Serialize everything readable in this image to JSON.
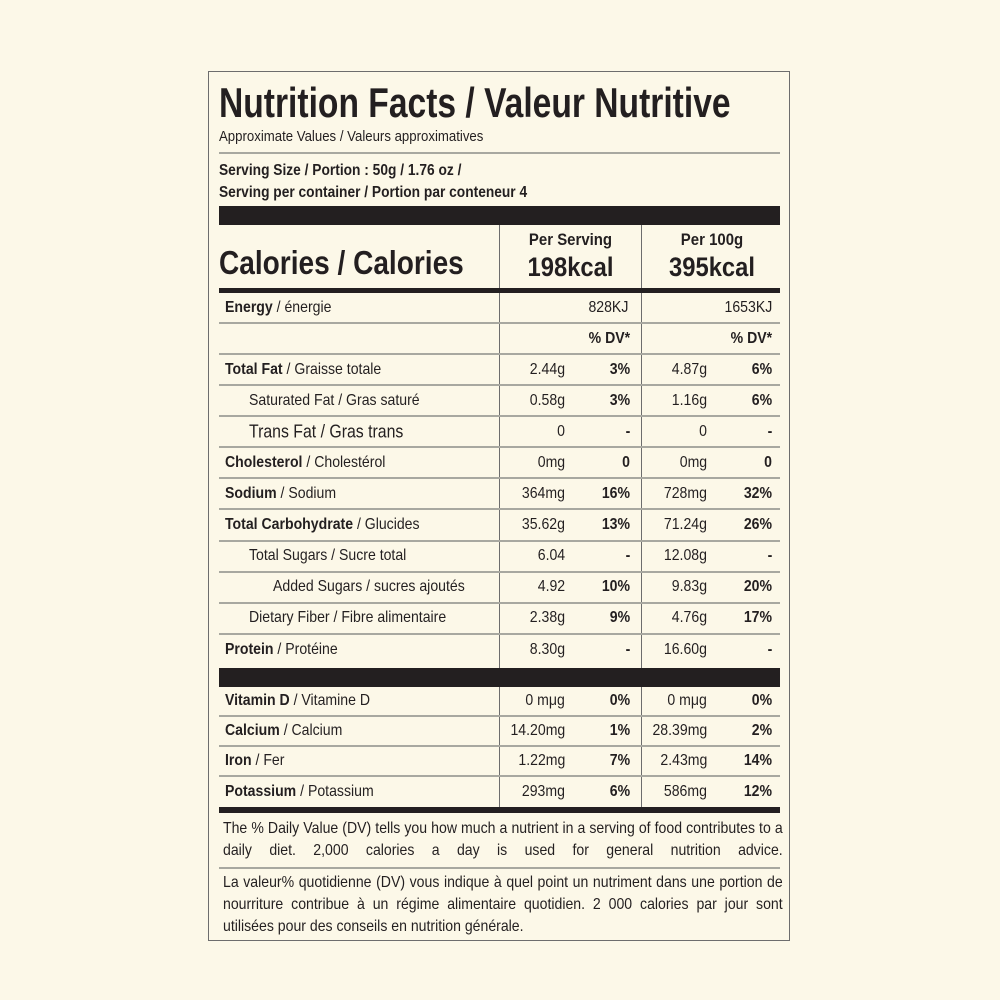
{
  "title": "Nutrition Facts / Valeur Nutritive",
  "approx": "Approximate Values / Valeurs approximatives",
  "serving_size": "Serving Size / Portion : 50g / 1.76 oz /",
  "servings_per_container": "Serving per container / Portion par conteneur  4",
  "calories_label": "Calories / Calories",
  "per_serving": {
    "label": "Per Serving",
    "kcal": "198kcal"
  },
  "per_100g": {
    "label": "Per 100g",
    "kcal": "395kcal"
  },
  "energy": {
    "name": "Energy",
    "fr": " / énergie",
    "v1": "828KJ",
    "v2": "1653KJ"
  },
  "dv_header": "% DV*",
  "nutrients": [
    {
      "name": "Total Fat",
      "fr": " / Graisse totale",
      "v1": "2.44g",
      "p1": "3%",
      "v2": "4.87g",
      "p2": "6%"
    },
    {
      "name": "",
      "fr": "Saturated Fat / Gras saturé",
      "v1": "0.58g",
      "p1": "3%",
      "v2": "1.16g",
      "p2": "6%"
    },
    {
      "name": "",
      "fr": "Trans Fat / Gras trans",
      "v1": "0",
      "p1": "-",
      "v2": "0",
      "p2": "-"
    },
    {
      "name": "Cholesterol",
      "fr": " / Cholestérol",
      "v1": "0mg",
      "p1": "0",
      "v2": "0mg",
      "p2": "0"
    },
    {
      "name": "Sodium",
      "fr": " / Sodium",
      "v1": "364mg",
      "p1": "16%",
      "v2": "728mg",
      "p2": "32%"
    },
    {
      "name": "Total Carbohydrate",
      "fr": " / Glucides",
      "v1": "35.62g",
      "p1": "13%",
      "v2": "71.24g",
      "p2": "26%"
    },
    {
      "name": "",
      "fr": "Total Sugars / Sucre total",
      "v1": "6.04",
      "p1": "-",
      "v2": "12.08g",
      "p2": "-"
    },
    {
      "name": "",
      "fr": "Added Sugars / sucres ajoutés",
      "v1": "4.92",
      "p1": "10%",
      "v2": "9.83g",
      "p2": "20%"
    },
    {
      "name": "",
      "fr": "Dietary Fiber / Fibre alimentaire",
      "v1": "2.38g",
      "p1": "9%",
      "v2": "4.76g",
      "p2": "17%"
    },
    {
      "name": "Protein",
      "fr": " / Protéine",
      "v1": "8.30g",
      "p1": "-",
      "v2": "16.60g",
      "p2": "-"
    }
  ],
  "minerals": [
    {
      "name": "Vitamin D",
      "fr": " / Vitamine D",
      "v1": "0 mμg",
      "p1": "0%",
      "v2": "0 mμg",
      "p2": "0%"
    },
    {
      "name": "Calcium",
      "fr": " / Calcium",
      "v1": "14.20mg",
      "p1": "1%",
      "v2": "28.39mg",
      "p2": "2%"
    },
    {
      "name": "Iron",
      "fr": " / Fer",
      "v1": "1.22mg",
      "p1": "7%",
      "v2": "2.43mg",
      "p2": "14%"
    },
    {
      "name": "Potassium",
      "fr": " / Potassium",
      "v1": "293mg",
      "p1": "6%",
      "v2": "586mg",
      "p2": "12%"
    }
  ],
  "footnote_en": "The % Daily Value (DV) tells you how much a nutrient in a serving of food contributes to a daily diet. 2,000 calories a day is used for general nutrition advice.",
  "footnote_fr": "La valeur% quotidienne (DV) vous indique à quel point un nutriment dans une portion de nourriture contribue à un régime alimentaire quotidien. 2 000 calories par jour sont utilisées pour des conseils en nutrition générale."
}
